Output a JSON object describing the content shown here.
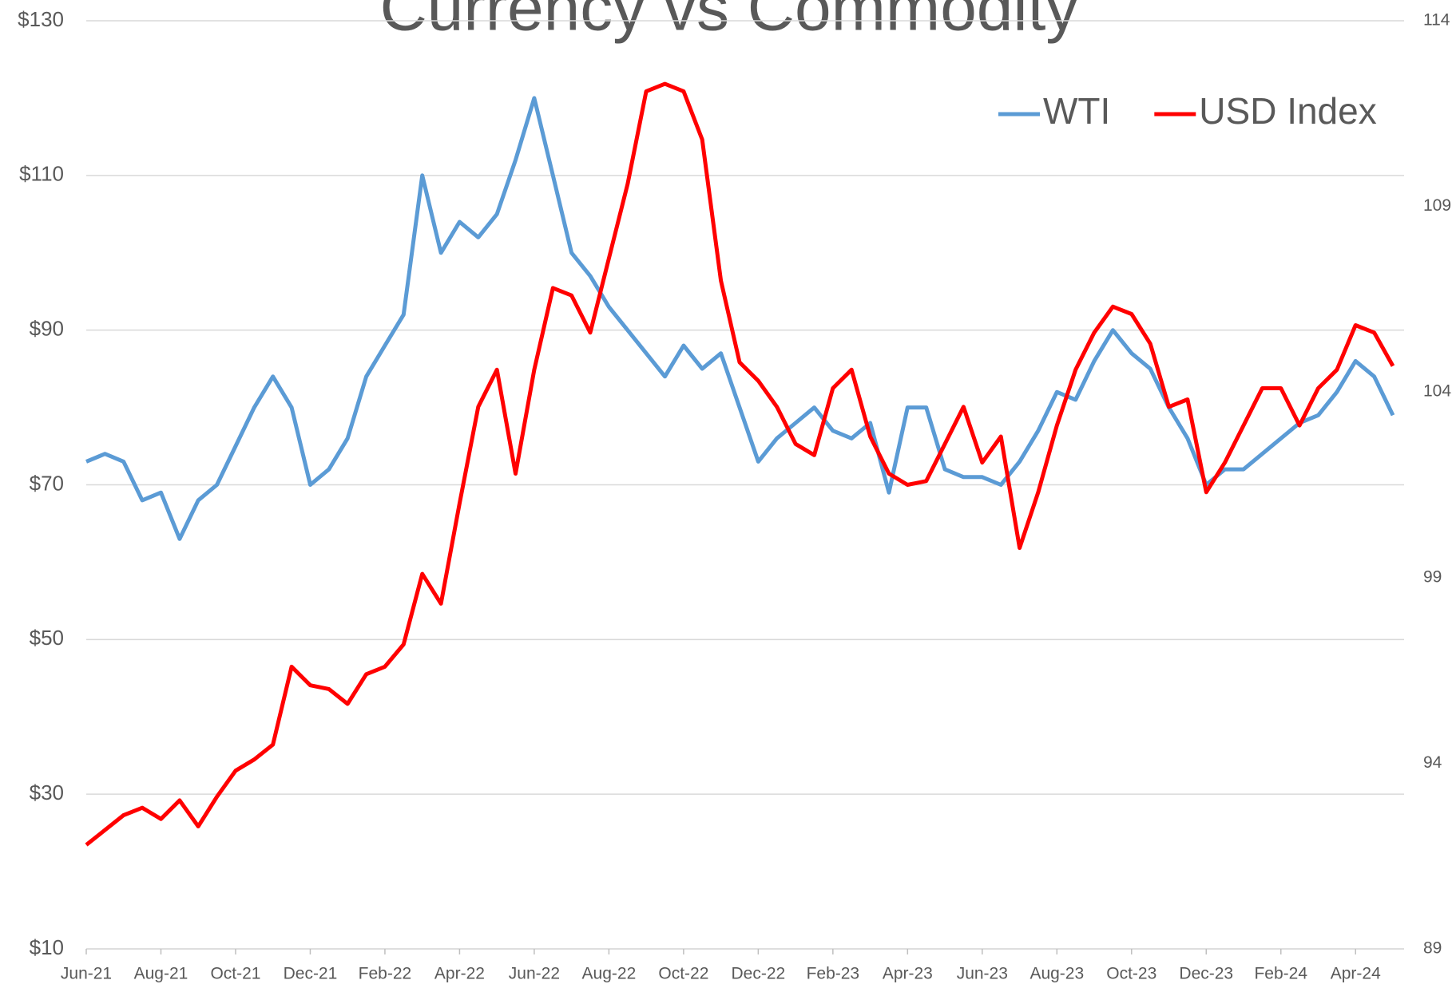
{
  "chart_data": {
    "type": "line",
    "title": "Currency vs Commodity",
    "categories": [
      "Jun-21",
      null,
      null,
      null,
      "Aug-21",
      null,
      null,
      null,
      "Oct-21",
      null,
      null,
      null,
      "Dec-21",
      null,
      null,
      null,
      "Feb-22",
      null,
      null,
      null,
      "Apr-22",
      null,
      null,
      null,
      "Jun-22",
      null,
      null,
      null,
      "Aug-22",
      null,
      null,
      null,
      "Oct-22",
      null,
      null,
      null,
      "Dec-22",
      null,
      null,
      null,
      "Feb-23",
      null,
      null,
      null,
      "Apr-23",
      null,
      null,
      null,
      "Jun-23",
      null,
      null,
      null,
      "Aug-23",
      null,
      null,
      null,
      "Oct-23",
      null,
      null,
      null,
      "Dec-23",
      null,
      null,
      null,
      "Feb-24",
      null,
      null,
      null,
      "Apr-24",
      null,
      null
    ],
    "series": [
      {
        "name": "WTI",
        "color": "#5b9bd5",
        "axis": "y",
        "values": [
          73,
          74,
          73,
          68,
          69,
          63,
          68,
          70,
          75,
          80,
          84,
          80,
          70,
          72,
          76,
          84,
          88,
          92,
          110,
          100,
          104,
          102,
          105,
          112,
          120,
          110,
          100,
          97,
          93,
          90,
          87,
          84,
          88,
          85,
          87,
          80,
          73,
          76,
          78,
          80,
          77,
          76,
          78,
          69,
          80,
          80,
          72,
          71,
          71,
          70,
          73,
          77,
          82,
          81,
          86,
          90,
          87,
          85,
          80,
          76,
          70,
          72,
          72,
          74,
          76,
          78,
          79,
          82,
          86,
          84,
          79
        ]
      },
      {
        "name": "USD Index",
        "color": "#ff0000",
        "axis": "y2",
        "values": [
          91.8,
          92.2,
          92.6,
          92.8,
          92.5,
          93.0,
          92.3,
          93.1,
          93.8,
          94.1,
          94.5,
          96.6,
          96.1,
          96.0,
          95.6,
          96.4,
          96.6,
          97.2,
          99.1,
          98.3,
          101.0,
          103.6,
          104.6,
          101.8,
          104.6,
          106.8,
          106.6,
          105.6,
          107.6,
          109.6,
          112.1,
          112.3,
          112.1,
          110.8,
          107.0,
          104.8,
          104.3,
          103.6,
          102.6,
          102.3,
          104.1,
          104.6,
          102.8,
          101.8,
          101.5,
          101.6,
          102.6,
          103.6,
          102.1,
          102.8,
          99.8,
          101.3,
          103.1,
          104.6,
          105.6,
          106.3,
          106.1,
          105.3,
          103.6,
          103.8,
          101.3,
          102.1,
          103.1,
          104.1,
          104.1,
          103.1,
          104.1,
          104.6,
          105.8,
          105.6,
          104.7
        ]
      }
    ],
    "ylim": [
      10,
      130
    ],
    "yticks": [
      {
        "value": 10,
        "label": "$10"
      },
      {
        "value": 30,
        "label": "$30"
      },
      {
        "value": 50,
        "label": "$50"
      },
      {
        "value": 70,
        "label": "$70"
      },
      {
        "value": 90,
        "label": "$90"
      },
      {
        "value": 110,
        "label": "$110"
      },
      {
        "value": 130,
        "label": "$130"
      }
    ],
    "y2lim": [
      89,
      114
    ],
    "y2ticks": [
      89,
      94,
      99,
      104,
      109,
      114
    ],
    "grid": true,
    "legend": "top-right"
  }
}
